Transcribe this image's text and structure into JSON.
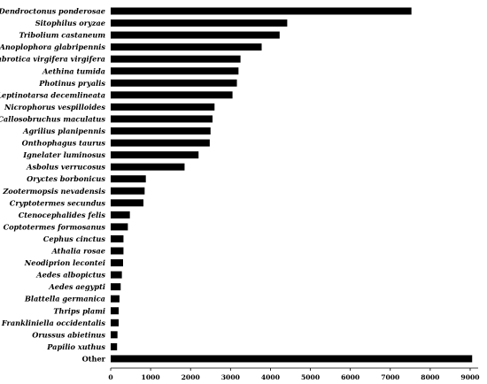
{
  "chart_data": {
    "type": "bar",
    "orientation": "horizontal",
    "title": "",
    "xlabel": "",
    "ylabel": "",
    "xlim": [
      0,
      9200
    ],
    "xticks": [
      0,
      1000,
      2000,
      3000,
      4000,
      5000,
      6000,
      7000,
      8000,
      9000
    ],
    "grid": false,
    "legend": "none",
    "bar_color": "#000000",
    "categories": [
      "Dendroctonus ponderosae",
      "Sitophilus oryzae",
      "Tribolium castaneum",
      "Anoplophora glabripennis",
      "Diabrotica virgifera virgifera",
      "Aethina tumida",
      "Photinus pryalis",
      "Leptinotarsa decemlineata",
      "Nicrophorus vespilloides",
      "Callosobruchus maculatus",
      "Agrilius planipennis",
      "Onthophagus taurus",
      "Ignelater luminosus",
      "Asbolus verrucosus",
      "Oryctes borbonicus",
      "Zootermopsis nevadensis",
      "Cryptotermes secundus",
      "Ctenocephalides felis",
      "Coptotermes formosanus",
      "Cephus cinctus",
      "Athalia rosae",
      "Neodiprion lecontei",
      "Aedes albopictus",
      "Aedes aegypti",
      "Blattella germanica",
      "Thrips plami",
      "Frankliniella occidentalis",
      "Orussus abietinus",
      "Papilio xuthus",
      "Other"
    ],
    "values": [
      7530,
      4420,
      4230,
      3780,
      3250,
      3200,
      3160,
      3050,
      2600,
      2550,
      2500,
      2480,
      2200,
      1850,
      880,
      850,
      820,
      480,
      430,
      320,
      320,
      310,
      280,
      250,
      220,
      200,
      200,
      170,
      160,
      9050
    ]
  }
}
